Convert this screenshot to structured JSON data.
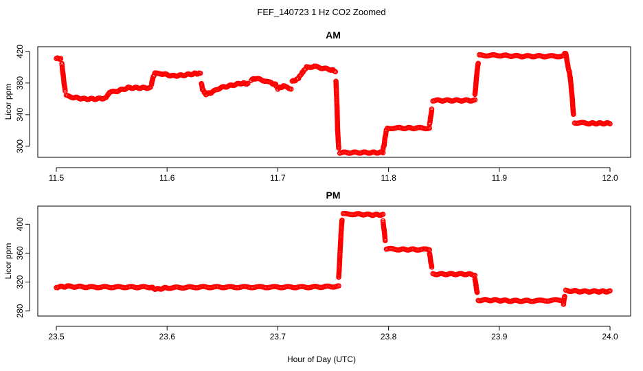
{
  "figure": {
    "title": "FEF_140723  1 Hz CO2 Zoomed",
    "xlabel": "Hour of Day (UTC)",
    "point_color": "#ff0000",
    "marker": "open-circle"
  },
  "chart_data": [
    {
      "type": "scatter",
      "title": "AM",
      "xlabel": "",
      "ylabel": "Licor ppm",
      "xlim": [
        11.5,
        12.0
      ],
      "ylim": [
        286,
        426
      ],
      "xticks": [
        "11.5",
        "11.6",
        "11.7",
        "11.8",
        "11.9",
        "12.0"
      ],
      "yticks": [
        "300",
        "340",
        "380",
        "420"
      ],
      "segments": [
        [
          [
            11.5,
            411
          ],
          [
            11.504,
            411
          ]
        ],
        [
          [
            11.505,
            404
          ],
          [
            11.506,
            392
          ],
          [
            11.507,
            380
          ],
          [
            11.508,
            370
          ]
        ],
        [
          [
            11.509,
            364
          ],
          [
            11.515,
            362
          ],
          [
            11.525,
            360
          ],
          [
            11.535,
            360
          ],
          [
            11.545,
            361
          ]
        ],
        [
          [
            11.546,
            364
          ],
          [
            11.548,
            368
          ],
          [
            11.555,
            370
          ],
          [
            11.565,
            374
          ],
          [
            11.575,
            374
          ],
          [
            11.585,
            374
          ]
        ],
        [
          [
            11.586,
            378
          ],
          [
            11.587,
            386
          ],
          [
            11.589,
            392
          ],
          [
            11.595,
            392
          ],
          [
            11.605,
            389
          ],
          [
            11.615,
            390
          ],
          [
            11.625,
            392
          ],
          [
            11.63,
            392
          ]
        ],
        [
          [
            11.631,
            380
          ],
          [
            11.632,
            372
          ],
          [
            11.635,
            366
          ],
          [
            11.64,
            368
          ],
          [
            11.648,
            374
          ],
          [
            11.658,
            377
          ],
          [
            11.668,
            380
          ],
          [
            11.673,
            379
          ]
        ],
        [
          [
            11.676,
            384
          ],
          [
            11.68,
            386
          ],
          [
            11.688,
            383
          ],
          [
            11.694,
            380
          ],
          [
            11.698,
            378
          ],
          [
            11.7,
            373
          ],
          [
            11.705,
            376
          ],
          [
            11.712,
            373
          ]
        ],
        [
          [
            11.713,
            382
          ],
          [
            11.718,
            385
          ],
          [
            11.722,
            393
          ],
          [
            11.726,
            400
          ],
          [
            11.733,
            401
          ],
          [
            11.74,
            399
          ],
          [
            11.748,
            397
          ],
          [
            11.752,
            395
          ]
        ],
        [
          [
            11.7525,
            382
          ],
          [
            11.753,
            366
          ],
          [
            11.7535,
            350
          ],
          [
            11.754,
            320
          ],
          [
            11.755,
            298
          ]
        ],
        [
          [
            11.756,
            292
          ],
          [
            11.77,
            292
          ],
          [
            11.785,
            292
          ],
          [
            11.795,
            292
          ]
        ],
        [
          [
            11.795,
            296
          ],
          [
            11.796,
            302
          ],
          [
            11.797,
            312
          ],
          [
            11.798,
            320
          ]
        ],
        [
          [
            11.799,
            323
          ],
          [
            11.81,
            323
          ],
          [
            11.825,
            323
          ],
          [
            11.837,
            323
          ]
        ],
        [
          [
            11.837,
            328
          ],
          [
            11.838,
            336
          ],
          [
            11.839,
            347
          ]
        ],
        [
          [
            11.84,
            358
          ],
          [
            11.855,
            358
          ],
          [
            11.87,
            358
          ],
          [
            11.878,
            358
          ]
        ],
        [
          [
            11.878,
            365
          ],
          [
            11.879,
            380
          ],
          [
            11.88,
            396
          ],
          [
            11.881,
            405
          ]
        ],
        [
          [
            11.882,
            415
          ],
          [
            11.9,
            415
          ],
          [
            11.92,
            414
          ],
          [
            11.94,
            414
          ],
          [
            11.958,
            414
          ]
        ],
        [
          [
            11.959,
            417
          ],
          [
            11.96,
            418
          ],
          [
            11.961,
            410
          ],
          [
            11.962,
            401
          ],
          [
            11.963,
            395
          ],
          [
            11.964,
            388
          ],
          [
            11.965,
            374
          ],
          [
            11.966,
            359
          ],
          [
            11.967,
            340
          ]
        ],
        [
          [
            11.968,
            330
          ],
          [
            11.98,
            329
          ],
          [
            11.99,
            329
          ],
          [
            12.0,
            329
          ]
        ]
      ]
    },
    {
      "type": "scatter",
      "title": "PM",
      "xlabel": "Hour of Day (UTC)",
      "ylabel": "Licor ppm",
      "xlim": [
        23.5,
        24.0
      ],
      "ylim": [
        273,
        425
      ],
      "xticks": [
        "23.5",
        "23.6",
        "23.7",
        "23.8",
        "23.9",
        "24.0"
      ],
      "yticks": [
        "280",
        "320",
        "360",
        "400"
      ],
      "segments": [
        [
          [
            23.5,
            313
          ],
          [
            23.51,
            314
          ],
          [
            23.53,
            313
          ],
          [
            23.56,
            313
          ],
          [
            23.585,
            313
          ],
          [
            23.59,
            310
          ],
          [
            23.6,
            312
          ],
          [
            23.63,
            313
          ],
          [
            23.66,
            313
          ],
          [
            23.7,
            313
          ],
          [
            23.73,
            313
          ],
          [
            23.755,
            314
          ]
        ],
        [
          [
            23.755,
            326
          ],
          [
            23.756,
            354
          ],
          [
            23.757,
            385
          ],
          [
            23.758,
            406
          ]
        ],
        [
          [
            23.759,
            414
          ],
          [
            23.77,
            414
          ],
          [
            23.785,
            413
          ],
          [
            23.795,
            413
          ]
        ],
        [
          [
            23.795,
            404
          ],
          [
            23.796,
            392
          ],
          [
            23.797,
            378
          ]
        ],
        [
          [
            23.798,
            366
          ],
          [
            23.81,
            365
          ],
          [
            23.825,
            365
          ],
          [
            23.837,
            365
          ]
        ],
        [
          [
            23.837,
            360
          ],
          [
            23.838,
            350
          ],
          [
            23.839,
            340
          ]
        ],
        [
          [
            23.84,
            331
          ],
          [
            23.855,
            331
          ],
          [
            23.87,
            331
          ],
          [
            23.878,
            330
          ]
        ],
        [
          [
            23.878,
            325
          ],
          [
            23.879,
            315
          ],
          [
            23.88,
            305
          ]
        ],
        [
          [
            23.881,
            295
          ],
          [
            23.895,
            295
          ],
          [
            23.91,
            294
          ],
          [
            23.93,
            294
          ],
          [
            23.958,
            295
          ]
        ],
        [
          [
            23.958,
            290
          ],
          [
            23.959,
            300
          ]
        ],
        [
          [
            23.96,
            308
          ],
          [
            23.975,
            307
          ],
          [
            23.99,
            307
          ],
          [
            24.0,
            307
          ]
        ]
      ]
    }
  ]
}
